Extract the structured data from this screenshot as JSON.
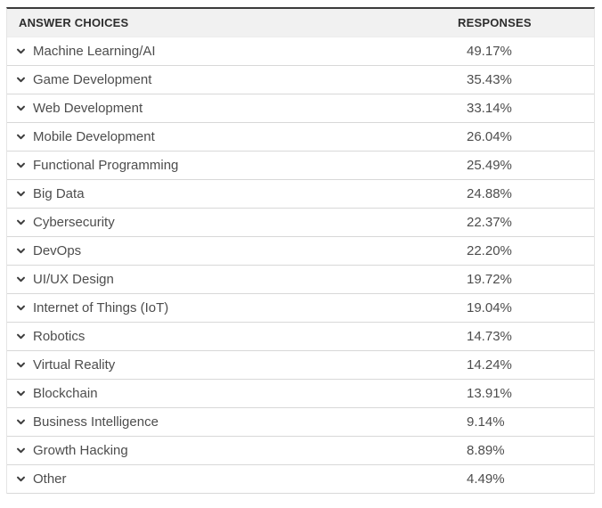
{
  "table": {
    "header": {
      "answer_choices": "ANSWER CHOICES",
      "responses": "RESPONSES"
    },
    "rows": [
      {
        "label": "Machine Learning/AI",
        "response": "49.17%"
      },
      {
        "label": "Game Development",
        "response": "35.43%"
      },
      {
        "label": "Web Development",
        "response": "33.14%"
      },
      {
        "label": "Mobile Development",
        "response": "26.04%"
      },
      {
        "label": "Functional Programming",
        "response": "25.49%"
      },
      {
        "label": "Big Data",
        "response": "24.88%"
      },
      {
        "label": "Cybersecurity",
        "response": "22.37%"
      },
      {
        "label": "DevOps",
        "response": "22.20%"
      },
      {
        "label": "UI/UX Design",
        "response": "19.72%"
      },
      {
        "label": "Internet of Things (IoT)",
        "response": "19.04%"
      },
      {
        "label": "Robotics",
        "response": "14.73%"
      },
      {
        "label": "Virtual Reality",
        "response": "14.24%"
      },
      {
        "label": "Blockchain",
        "response": "13.91%"
      },
      {
        "label": "Business Intelligence",
        "response": "9.14%"
      },
      {
        "label": "Growth Hacking",
        "response": "8.89%"
      },
      {
        "label": "Other",
        "response": "4.49%"
      }
    ]
  },
  "icons": {
    "row_expander": "chevron-down"
  },
  "colors": {
    "top_border": "#3b3b3b",
    "header_bg": "#f1f1f1",
    "header_text": "#2d2d2d",
    "row_text": "#4d4d4d",
    "row_divider": "#d8d8d8",
    "chevron": "#3d3d3d"
  },
  "chart_data": {
    "type": "table",
    "title": "",
    "columns": [
      "ANSWER CHOICES",
      "RESPONSES"
    ],
    "categories": [
      "Machine Learning/AI",
      "Game Development",
      "Web Development",
      "Mobile Development",
      "Functional Programming",
      "Big Data",
      "Cybersecurity",
      "DevOps",
      "UI/UX Design",
      "Internet of Things (IoT)",
      "Robotics",
      "Virtual Reality",
      "Blockchain",
      "Business Intelligence",
      "Growth Hacking",
      "Other"
    ],
    "values": [
      49.17,
      35.43,
      33.14,
      26.04,
      25.49,
      24.88,
      22.37,
      22.2,
      19.72,
      19.04,
      14.73,
      14.24,
      13.91,
      9.14,
      8.89,
      4.49
    ],
    "value_format": "percent",
    "legend": "none",
    "grid": "horizontal-row-dividers"
  }
}
